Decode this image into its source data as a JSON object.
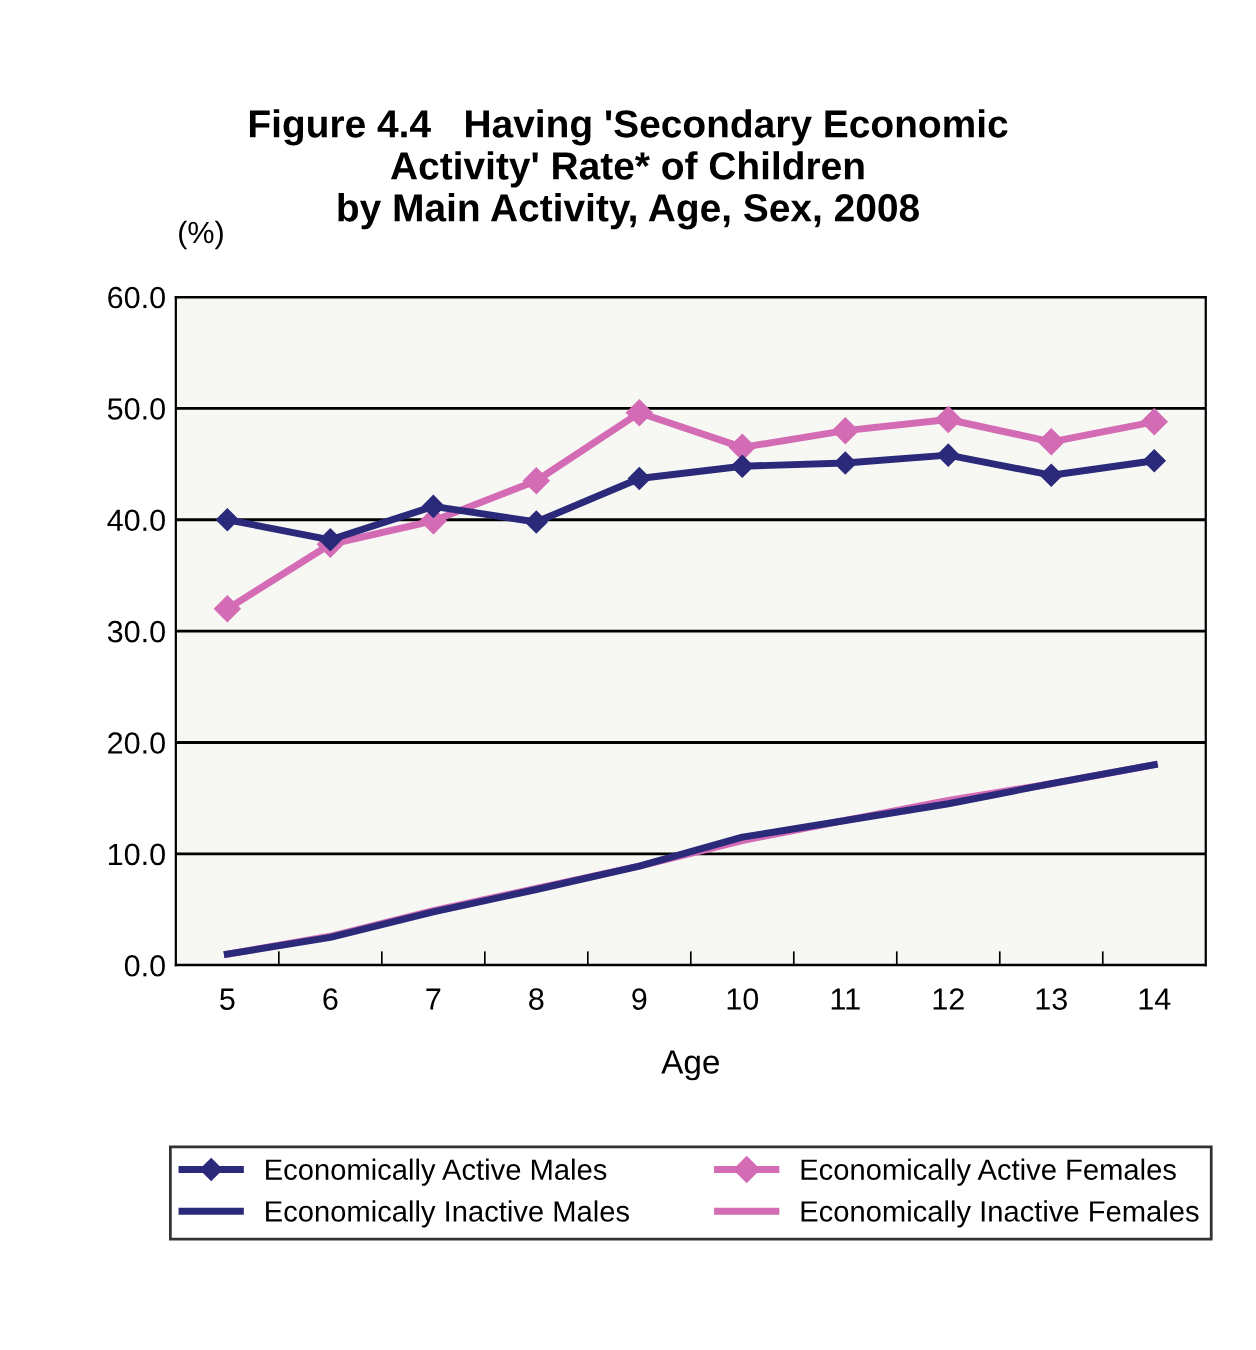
{
  "chart_data": {
    "type": "line",
    "title": "Figure 4.4   Having 'Secondary Economic\nActivity' Rate* of Children\nby Main Activity, Age, Sex, 2008",
    "ylabel": "(%)",
    "xlabel": "Age",
    "categories": [
      "5",
      "6",
      "7",
      "8",
      "9",
      "10",
      "11",
      "12",
      "13",
      "14"
    ],
    "series": [
      {
        "name": "Economically Active Males",
        "color": "#2b2a7a",
        "marker": "diamond",
        "values": [
          40.0,
          38.2,
          41.2,
          39.8,
          43.7,
          44.8,
          45.1,
          45.8,
          44.0,
          45.3
        ]
      },
      {
        "name": "Economically Active Females",
        "color": "#d36bb5",
        "marker": "diamond",
        "values": [
          32.0,
          37.8,
          39.9,
          43.5,
          49.6,
          46.5,
          48.0,
          49.0,
          47.0,
          48.8
        ]
      },
      {
        "name": "Economically Inactive Males",
        "color": "#2b2a7a",
        "marker": "none",
        "values": [
          1.0,
          2.5,
          4.8,
          6.8,
          8.9,
          11.5,
          13.0,
          14.5,
          16.3,
          18.0
        ]
      },
      {
        "name": "Economically Inactive Females",
        "color": "#d36bb5",
        "marker": "none",
        "values": [
          1.0,
          2.6,
          4.9,
          6.9,
          8.9,
          11.2,
          13.0,
          14.8,
          16.3,
          18.0
        ]
      }
    ],
    "ylim": [
      0,
      60
    ],
    "yticks": [
      {
        "value": 0,
        "label": "0.0"
      },
      {
        "value": 10,
        "label": "10.0"
      },
      {
        "value": 20,
        "label": "20.0"
      },
      {
        "value": 30,
        "label": "30.0"
      },
      {
        "value": 40,
        "label": "40.0"
      },
      {
        "value": 50,
        "label": "50.0"
      },
      {
        "value": 60,
        "label": "60.0"
      }
    ],
    "grid": "y",
    "legend": "bottom",
    "line_style": "solid"
  }
}
